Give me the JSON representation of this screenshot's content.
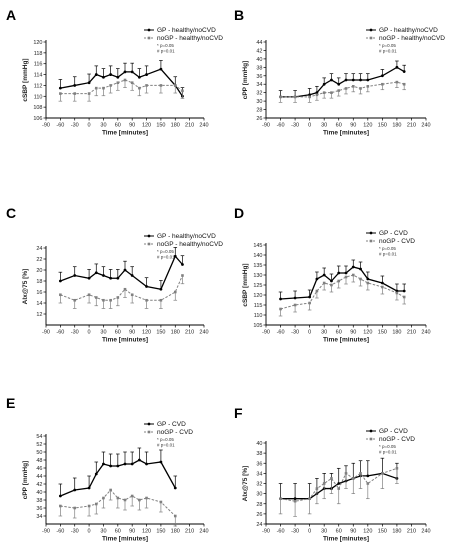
{
  "chart_data": [
    {
      "panel": "A",
      "type": "line",
      "ylabel": "cSBP [mmHg]",
      "xlabel": "Time [minutes]",
      "xlim": [
        -90,
        240
      ],
      "xticks": [
        -90,
        -60,
        -30,
        0,
        30,
        60,
        90,
        120,
        150,
        180,
        210,
        240
      ],
      "ylim": [
        106,
        120
      ],
      "yticks": [
        106,
        108,
        110,
        112,
        114,
        116,
        118,
        120
      ],
      "legend": "top-right",
      "notes": [
        "* p=0.05",
        "# p=0.01"
      ],
      "series": [
        {
          "name": "GP - healthy/noCVD",
          "color": "#000000",
          "dashed": false,
          "marker": "circle",
          "x": [
            -60,
            -30,
            0,
            15,
            30,
            45,
            60,
            75,
            90,
            105,
            120,
            150,
            180,
            195
          ],
          "y": [
            111.5,
            112,
            112.5,
            114,
            113.5,
            114,
            113.5,
            114.5,
            114.5,
            113.5,
            114,
            115,
            112,
            110
          ],
          "err": [
            1.6,
            1.6,
            1.6,
            1.6,
            1.6,
            1.6,
            1.6,
            1.6,
            1.6,
            1.6,
            1.6,
            1.6,
            1.6,
            1.6
          ]
        },
        {
          "name": "noGP - healthy/noCVD",
          "color": "#808080",
          "dashed": true,
          "marker": "square",
          "x": [
            -60,
            -30,
            0,
            15,
            30,
            45,
            60,
            75,
            90,
            105,
            120,
            150,
            180,
            195
          ],
          "y": [
            110.5,
            110.5,
            110.5,
            111.5,
            111.5,
            112,
            112.5,
            113,
            112.5,
            111.5,
            112,
            112,
            112,
            111
          ],
          "err": [
            1.4,
            1.4,
            1.4,
            1.4,
            1.4,
            1.4,
            1.4,
            1.4,
            1.4,
            1.4,
            1.4,
            1.4,
            1.4,
            1.4
          ]
        }
      ]
    },
    {
      "panel": "B",
      "type": "line",
      "ylabel": "cPP [mmHg]",
      "xlabel": "Time [minutes]",
      "xlim": [
        -90,
        240
      ],
      "xticks": [
        -90,
        -60,
        -30,
        0,
        30,
        60,
        90,
        120,
        150,
        180,
        210,
        240
      ],
      "ylim": [
        26,
        44
      ],
      "yticks": [
        26,
        28,
        30,
        32,
        34,
        36,
        38,
        40,
        42,
        44
      ],
      "legend": "top-right",
      "notes": [
        "* p=0.05",
        "# p=0.01"
      ],
      "series": [
        {
          "name": "GP - healthy/noCVD",
          "color": "#000000",
          "dashed": false,
          "marker": "circle",
          "x": [
            -60,
            -30,
            0,
            15,
            30,
            45,
            60,
            75,
            90,
            105,
            120,
            150,
            180,
            195
          ],
          "y": [
            31,
            31,
            31.5,
            32,
            34,
            35,
            34,
            35,
            35,
            35,
            35,
            36,
            38,
            37
          ],
          "err": [
            1.5,
            1.5,
            1.5,
            1.5,
            1.5,
            1.5,
            1.5,
            1.5,
            1.5,
            1.5,
            1.5,
            1.5,
            1.5,
            1.5
          ]
        },
        {
          "name": "noGP - healthy/noCVD",
          "color": "#808080",
          "dashed": true,
          "marker": "square",
          "x": [
            -60,
            -30,
            0,
            15,
            30,
            45,
            60,
            75,
            90,
            105,
            120,
            150,
            180,
            195
          ],
          "y": [
            31,
            31,
            31,
            31.5,
            32,
            32,
            32.5,
            33,
            33.5,
            33,
            33.5,
            34,
            34.5,
            34
          ],
          "err": [
            1.3,
            1.3,
            1.3,
            1.3,
            1.3,
            1.3,
            1.3,
            1.3,
            1.3,
            1.3,
            1.3,
            1.3,
            1.3,
            1.3
          ]
        }
      ]
    },
    {
      "panel": "C",
      "type": "line",
      "ylabel": "AIx@75 [%]",
      "xlabel": "Time [minutes]",
      "xlim": [
        -90,
        240
      ],
      "xticks": [
        -90,
        -60,
        -30,
        0,
        30,
        60,
        90,
        120,
        150,
        180,
        210,
        240
      ],
      "ylim": [
        10,
        24
      ],
      "yticks": [
        12,
        14,
        16,
        18,
        20,
        22,
        24
      ],
      "legend": "top-right",
      "notes": [
        "* p=0.05",
        "# p=0.01"
      ],
      "series": [
        {
          "name": "GP - healthy/noCVD",
          "color": "#000000",
          "dashed": false,
          "marker": "circle",
          "x": [
            -60,
            -30,
            0,
            15,
            30,
            45,
            60,
            75,
            90,
            120,
            150,
            180,
            195
          ],
          "y": [
            18,
            19,
            18.5,
            19.5,
            19,
            18.5,
            18.5,
            20,
            19,
            17,
            16.5,
            22.5,
            21
          ],
          "err": [
            1.6,
            1.6,
            1.6,
            1.6,
            1.6,
            1.6,
            1.6,
            1.6,
            1.6,
            1.6,
            1.6,
            1.6,
            1.6
          ]
        },
        {
          "name": "noGP - healthy/noCVD",
          "color": "#808080",
          "dashed": true,
          "marker": "square",
          "x": [
            -60,
            -30,
            0,
            15,
            30,
            45,
            60,
            75,
            90,
            120,
            150,
            180,
            195
          ],
          "y": [
            15.5,
            14.5,
            15.5,
            15,
            14.5,
            14.5,
            15,
            16.5,
            15.5,
            14.5,
            14.5,
            16,
            19
          ],
          "err": [
            1.5,
            1.5,
            1.5,
            1.5,
            1.5,
            1.5,
            1.5,
            1.5,
            1.5,
            1.5,
            1.5,
            1.5,
            1.5
          ]
        }
      ]
    },
    {
      "panel": "D",
      "type": "line",
      "ylabel": "cSBP [mmHg]",
      "xlabel": "Time [minutes]",
      "xlim": [
        -90,
        240
      ],
      "xticks": [
        -90,
        -60,
        -30,
        0,
        30,
        60,
        90,
        120,
        150,
        180,
        210,
        240
      ],
      "ylim": [
        105,
        145
      ],
      "yticks": [
        105,
        110,
        115,
        120,
        125,
        130,
        135,
        140,
        145
      ],
      "legend": "top-right",
      "notes": [
        "* p=0.05",
        "# p=0.01"
      ],
      "series": [
        {
          "name": "GP - CVD",
          "color": "#000000",
          "dashed": false,
          "marker": "circle",
          "x": [
            -60,
            -30,
            0,
            15,
            30,
            45,
            60,
            75,
            90,
            105,
            120,
            150,
            180,
            195
          ],
          "y": [
            118,
            118.5,
            119,
            128,
            130,
            127,
            131,
            131,
            134,
            133,
            128,
            126,
            122,
            122
          ],
          "err": [
            3.5,
            3.5,
            3.5,
            3.5,
            3.5,
            3.5,
            3.5,
            3.5,
            3.5,
            3.5,
            3.5,
            3.5,
            3.5,
            3.5
          ]
        },
        {
          "name": "noGP - CVD",
          "color": "#808080",
          "dashed": true,
          "marker": "square",
          "x": [
            -60,
            -30,
            0,
            15,
            30,
            45,
            60,
            75,
            90,
            105,
            120,
            150,
            180,
            195
          ],
          "y": [
            113,
            115,
            116,
            122,
            126,
            125,
            127,
            129,
            130,
            128,
            126,
            124,
            121,
            119
          ],
          "err": [
            3.5,
            3.5,
            3.5,
            3.5,
            3.5,
            3.5,
            3.5,
            3.5,
            3.5,
            3.5,
            3.5,
            3.5,
            3.5,
            3.5
          ]
        }
      ]
    },
    {
      "panel": "E",
      "type": "line",
      "ylabel": "cPP [mmHg]",
      "xlabel": "Time [minutes]",
      "xlim": [
        -90,
        240
      ],
      "xticks": [
        -90,
        -60,
        -30,
        0,
        30,
        60,
        90,
        120,
        150,
        180,
        210,
        240
      ],
      "ylim": [
        32,
        54
      ],
      "yticks": [
        34,
        36,
        38,
        40,
        42,
        44,
        46,
        48,
        50,
        52,
        54
      ],
      "legend": "top-right",
      "notes": [
        "* p=0.05",
        "# p=0.01"
      ],
      "series": [
        {
          "name": "GP - CVD",
          "color": "#000000",
          "dashed": false,
          "marker": "circle",
          "x": [
            -60,
            -30,
            0,
            15,
            30,
            45,
            60,
            75,
            90,
            105,
            120,
            150,
            180
          ],
          "y": [
            39,
            40.5,
            41,
            44.5,
            47,
            46.5,
            46.5,
            47,
            47,
            48,
            47,
            47.5,
            41
          ],
          "err": [
            3,
            3,
            3,
            3,
            3,
            3,
            3,
            3,
            3,
            3,
            3,
            3,
            3
          ]
        },
        {
          "name": "noGP - CVD",
          "color": "#808080",
          "dashed": true,
          "marker": "square",
          "x": [
            -60,
            -30,
            0,
            15,
            30,
            45,
            60,
            75,
            90,
            105,
            120,
            150,
            180
          ],
          "y": [
            36.5,
            36,
            36.5,
            37,
            38.5,
            40.5,
            38.5,
            38,
            39,
            38,
            38.5,
            37.5,
            34
          ],
          "err": [
            2.5,
            2.5,
            2.5,
            2.5,
            2.5,
            2.5,
            2.5,
            2.5,
            2.5,
            2.5,
            2.5,
            2.5,
            2.5
          ]
        }
      ]
    },
    {
      "panel": "F",
      "type": "line",
      "ylabel": "AIx@75 [%]",
      "xlabel": "Time [minutes]",
      "xlim": [
        -90,
        240
      ],
      "xticks": [
        -90,
        -60,
        -30,
        0,
        30,
        60,
        90,
        120,
        150,
        180,
        210,
        240
      ],
      "ylim": [
        24,
        40
      ],
      "yticks": [
        24,
        26,
        28,
        30,
        32,
        34,
        36,
        38,
        40
      ],
      "legend": "top-right",
      "notes": [
        "* p=0.05",
        "# p=0.01"
      ],
      "series": [
        {
          "name": "GP - CVD",
          "color": "#000000",
          "dashed": false,
          "marker": "circle",
          "x": [
            -60,
            -30,
            0,
            15,
            30,
            45,
            60,
            75,
            90,
            105,
            120,
            150,
            180
          ],
          "y": [
            29,
            29,
            29,
            30,
            31,
            31,
            32,
            32.5,
            33,
            33.5,
            33.5,
            34,
            33
          ],
          "err": [
            3,
            3,
            3,
            3,
            3,
            3,
            3,
            3,
            3,
            3,
            3,
            3,
            3
          ]
        },
        {
          "name": "noGP - CVD",
          "color": "#808080",
          "dashed": true,
          "marker": "square",
          "x": [
            -60,
            -30,
            0,
            15,
            30,
            45,
            60,
            75,
            90,
            105,
            120,
            150,
            180
          ],
          "y": [
            29,
            28.5,
            29,
            31,
            32,
            33,
            31,
            34,
            33,
            34,
            32,
            34,
            35
          ],
          "err": [
            3,
            3,
            3,
            3,
            3,
            3,
            3,
            3,
            3,
            3,
            3,
            3,
            3
          ]
        }
      ]
    }
  ]
}
